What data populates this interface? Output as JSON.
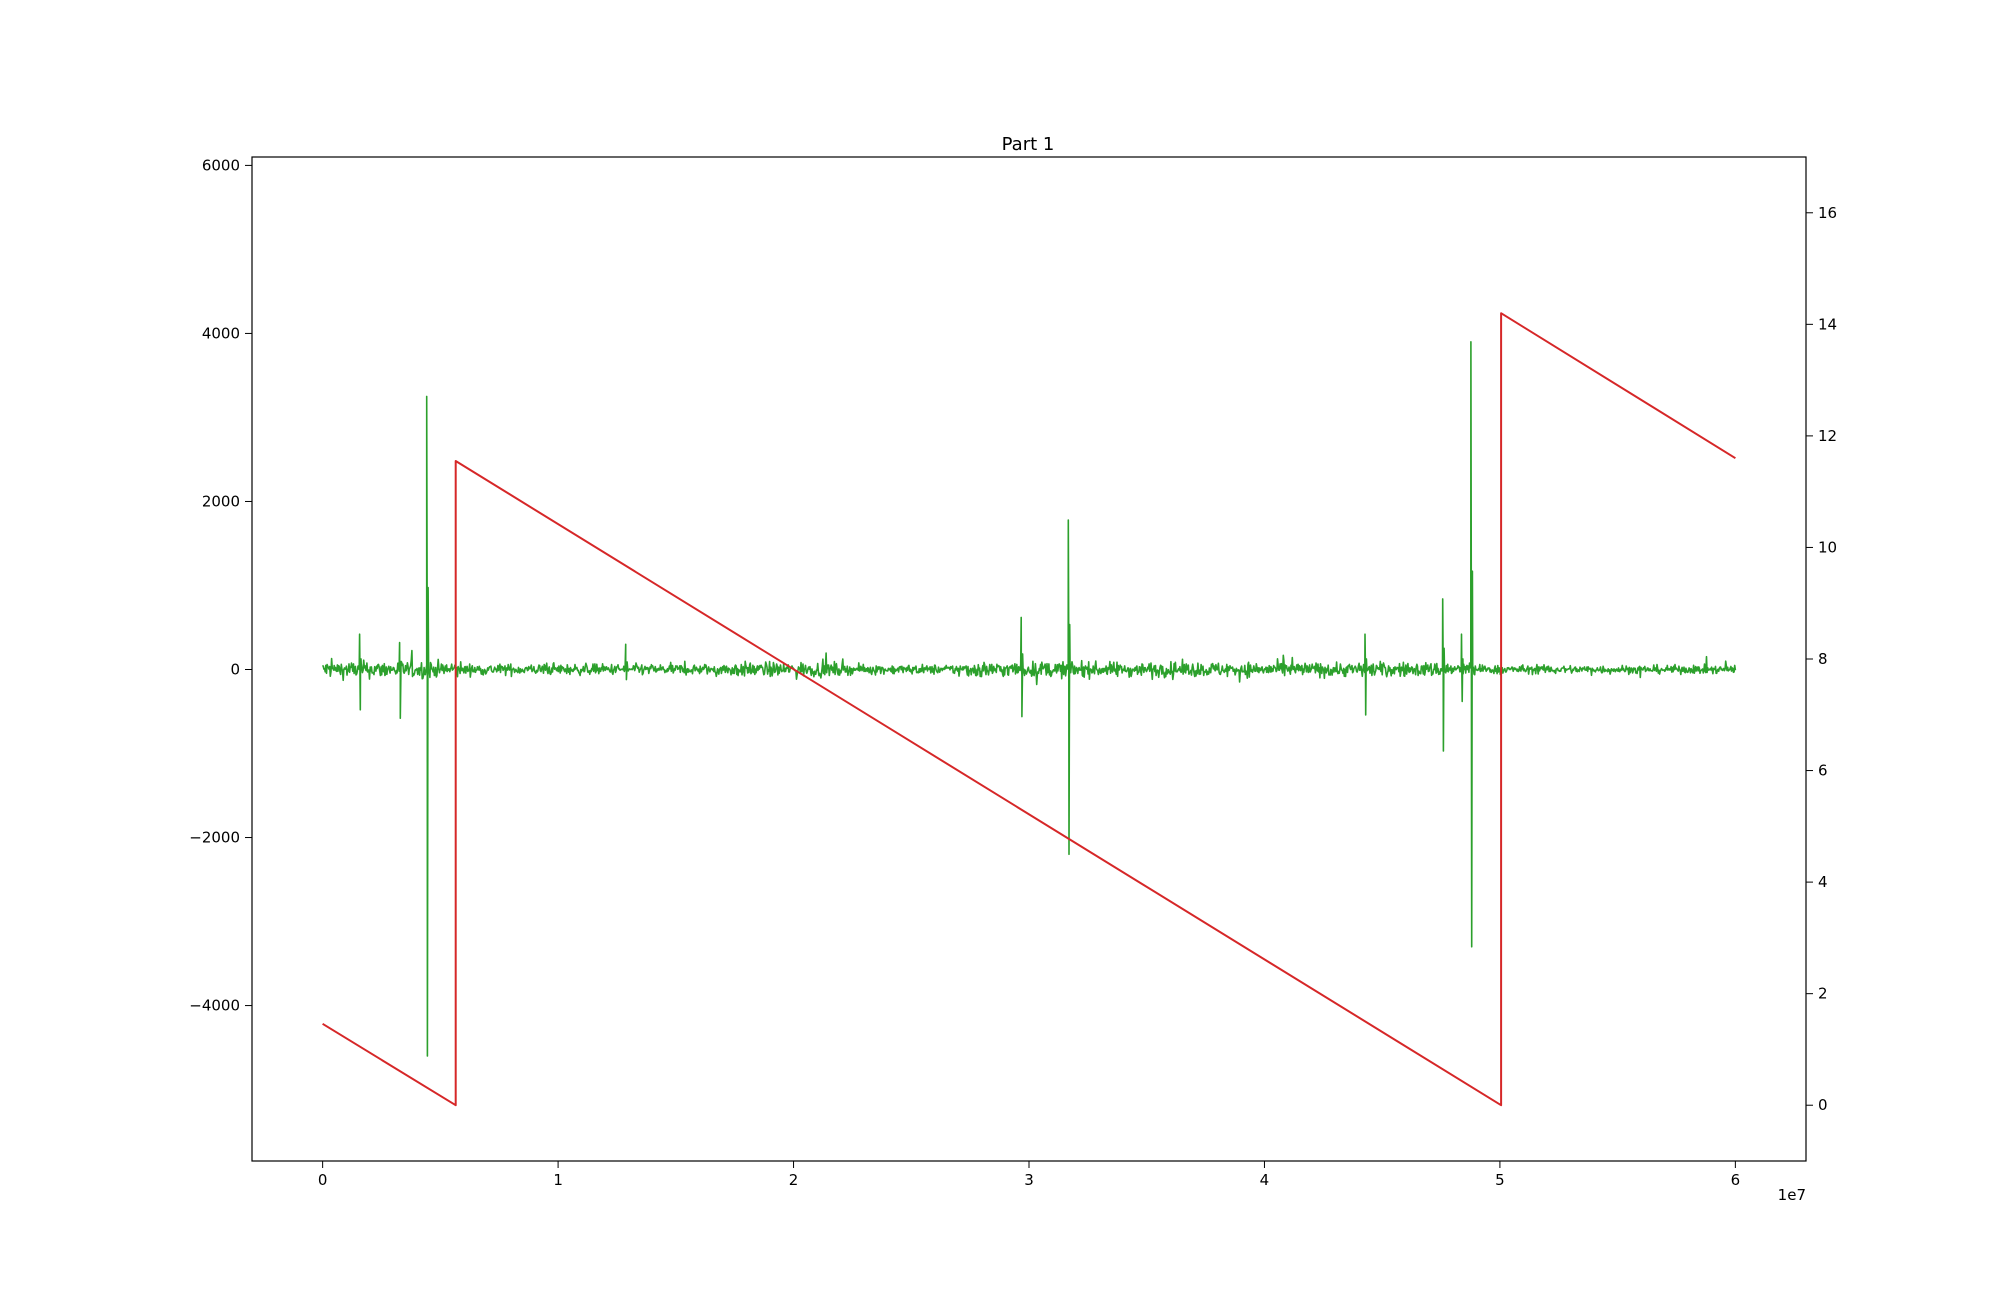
{
  "chart_data": {
    "type": "line",
    "title": "Part 1",
    "xlabel": "",
    "ylabel_left": "",
    "ylabel_right": "",
    "x_offset_label": "1e7",
    "x_scale": 10000000,
    "xlim": [
      -3000000,
      63000000
    ],
    "ylim_left": [
      -5850,
      6100
    ],
    "ylim_right": [
      -1.0,
      17.0
    ],
    "x_ticks": [
      0,
      10000000,
      20000000,
      30000000,
      40000000,
      50000000,
      60000000
    ],
    "x_tick_labels": [
      "0",
      "1",
      "2",
      "3",
      "4",
      "5",
      "6"
    ],
    "y_left_ticks": [
      -4000,
      -2000,
      0,
      2000,
      4000,
      6000
    ],
    "y_left_tick_labels": [
      "−4000",
      "−2000",
      "0",
      "2000",
      "4000",
      "6000"
    ],
    "y_right_ticks": [
      0,
      2,
      4,
      6,
      8,
      10,
      12,
      14,
      16
    ],
    "y_right_tick_labels": [
      "0",
      "2",
      "4",
      "6",
      "8",
      "10",
      "12",
      "14",
      "16"
    ],
    "grid": false,
    "legend": "none",
    "series": [
      {
        "axis": "right",
        "color": "#d62728",
        "points": [
          [
            0,
            1.46
          ],
          [
            5650000,
            0.0
          ],
          [
            5650000,
            11.55
          ],
          [
            50050000,
            0.0
          ],
          [
            50050000,
            14.2
          ],
          [
            60000000,
            11.6
          ]
        ]
      },
      {
        "axis": "left",
        "color": "#2ca02c",
        "noise": {
          "x_start": 0,
          "x_end": 60000000,
          "typical_amplitude": 110,
          "segments": [
            {
              "x_start": 0,
              "x_end": 6000000,
              "amplitude": 140
            },
            {
              "x_start": 6000000,
              "x_end": 17000000,
              "amplitude": 90
            },
            {
              "x_start": 17000000,
              "x_end": 22000000,
              "amplitude": 120
            },
            {
              "x_start": 22000000,
              "x_end": 27000000,
              "amplitude": 80
            },
            {
              "x_start": 27000000,
              "x_end": 32000000,
              "amplitude": 130
            },
            {
              "x_start": 32000000,
              "x_end": 49000000,
              "amplitude": 120
            },
            {
              "x_start": 49000000,
              "x_end": 60000000,
              "amplitude": 70
            }
          ]
        },
        "spikes": [
          {
            "x": 1600000,
            "max": 420,
            "min": -480
          },
          {
            "x": 3300000,
            "max": 320,
            "min": -580
          },
          {
            "x": 4450000,
            "max": 3250,
            "min": -4600
          },
          {
            "x": 12900000,
            "max": 300,
            "min": -120
          },
          {
            "x": 29700000,
            "max": 620,
            "min": -560
          },
          {
            "x": 31700000,
            "max": 1780,
            "min": -2200
          },
          {
            "x": 44300000,
            "max": 420,
            "min": -540
          },
          {
            "x": 47600000,
            "max": 840,
            "min": -970
          },
          {
            "x": 48400000,
            "max": 420,
            "min": -380
          },
          {
            "x": 48800000,
            "max": 3900,
            "min": -3300
          }
        ]
      }
    ]
  }
}
